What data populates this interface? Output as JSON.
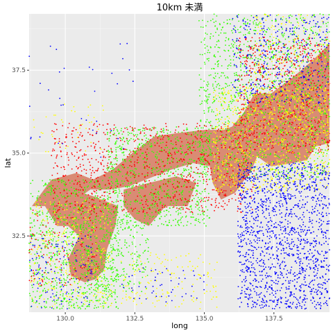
{
  "chart_data": {
    "type": "scatter",
    "title": "10km 未満",
    "xlabel": "long",
    "ylabel": "lat",
    "xlim": [
      128.7,
      139.5
    ],
    "ylim": [
      30.2,
      39.2
    ],
    "grid": true,
    "legend": "none",
    "x_ticks": [
      {
        "value": 130.0,
        "label": "130.0"
      },
      {
        "value": 132.5,
        "label": "132.5"
      },
      {
        "value": 135.0,
        "label": "135.0"
      },
      {
        "value": 137.5,
        "label": "137.5"
      }
    ],
    "y_ticks": [
      {
        "value": 32.5,
        "label": "32.5"
      },
      {
        "value": 35.0,
        "label": "35.0"
      },
      {
        "value": 37.5,
        "label": "37.5"
      }
    ],
    "colors": {
      "panel_background": "#ebebeb",
      "grid": "#ffffff",
      "land": "#d98b74",
      "blue": "#0000ff",
      "yellow": "#ffff00",
      "green": "#33ff00",
      "red": "#ff0000"
    },
    "land_polygons": [
      [
        [
          128.8,
          33.4
        ],
        [
          129.5,
          34.2
        ],
        [
          130.4,
          34.4
        ],
        [
          131.0,
          34.2
        ],
        [
          131.7,
          34.5
        ],
        [
          132.4,
          35.0
        ],
        [
          133.2,
          35.5
        ],
        [
          134.0,
          35.6
        ],
        [
          135.0,
          35.7
        ],
        [
          135.7,
          35.7
        ],
        [
          136.0,
          35.8
        ],
        [
          136.4,
          36.2
        ],
        [
          136.8,
          36.8
        ],
        [
          137.4,
          36.8
        ],
        [
          138.2,
          37.3
        ],
        [
          138.9,
          37.8
        ],
        [
          139.5,
          38.3
        ],
        [
          139.5,
          35.3
        ],
        [
          139.0,
          35.2
        ],
        [
          138.7,
          34.8
        ],
        [
          138.2,
          34.7
        ],
        [
          137.4,
          34.6
        ],
        [
          136.9,
          34.9
        ],
        [
          136.7,
          34.5
        ],
        [
          136.1,
          33.8
        ],
        [
          135.6,
          33.6
        ],
        [
          135.3,
          34.1
        ],
        [
          135.2,
          34.6
        ],
        [
          134.6,
          34.7
        ],
        [
          133.8,
          34.5
        ],
        [
          132.9,
          34.2
        ],
        [
          132.3,
          34.0
        ],
        [
          131.6,
          33.9
        ],
        [
          130.9,
          33.9
        ],
        [
          130.4,
          33.6
        ],
        [
          129.8,
          33.4
        ]
      ],
      [
        [
          129.2,
          33.5
        ],
        [
          130.2,
          33.9
        ],
        [
          131.0,
          33.7
        ],
        [
          131.9,
          33.4
        ],
        [
          131.8,
          32.8
        ],
        [
          131.5,
          32.1
        ],
        [
          131.4,
          31.5
        ],
        [
          131.1,
          31.2
        ],
        [
          130.7,
          31.1
        ],
        [
          130.2,
          31.3
        ],
        [
          130.1,
          31.8
        ],
        [
          130.5,
          32.5
        ],
        [
          130.1,
          32.8
        ],
        [
          129.7,
          32.8
        ]
      ],
      [
        [
          132.1,
          33.9
        ],
        [
          133.0,
          34.1
        ],
        [
          134.0,
          34.3
        ],
        [
          134.7,
          34.1
        ],
        [
          134.4,
          33.4
        ],
        [
          133.6,
          33.4
        ],
        [
          133.0,
          32.8
        ],
        [
          132.5,
          33.0
        ],
        [
          132.1,
          33.4
        ]
      ]
    ],
    "cluster_seed": 12345,
    "clusters": [
      {
        "series": "green",
        "x": [
          128.7,
          131.9
        ],
        "y": [
          30.3,
          34.2
        ],
        "n": 900
      },
      {
        "series": "green",
        "x": [
          131.5,
          135.2
        ],
        "y": [
          32.8,
          35.8
        ],
        "n": 800
      },
      {
        "series": "green",
        "x": [
          134.8,
          139.5
        ],
        "y": [
          34.2,
          39.2
        ],
        "n": 1300
      },
      {
        "series": "green",
        "x": [
          130.8,
          133.0
        ],
        "y": [
          30.8,
          33.0
        ],
        "n": 260
      },
      {
        "series": "red",
        "x": [
          129.5,
          136.8
        ],
        "y": [
          33.2,
          35.9
        ],
        "n": 900
      },
      {
        "series": "red",
        "x": [
          136.2,
          139.5
        ],
        "y": [
          35.0,
          38.5
        ],
        "n": 700
      },
      {
        "series": "red",
        "x": [
          128.7,
          131.2
        ],
        "y": [
          31.0,
          33.4
        ],
        "n": 150
      },
      {
        "series": "yellow",
        "x": [
          128.7,
          131.7
        ],
        "y": [
          30.3,
          33.6
        ],
        "n": 320
      },
      {
        "series": "yellow",
        "x": [
          135.3,
          139.5
        ],
        "y": [
          33.8,
          37.0
        ],
        "n": 900
      },
      {
        "series": "yellow",
        "x": [
          132.0,
          135.5
        ],
        "y": [
          30.3,
          32.0
        ],
        "n": 150
      },
      {
        "series": "yellow",
        "x": [
          136.8,
          139.5
        ],
        "y": [
          36.0,
          39.2
        ],
        "n": 250
      },
      {
        "series": "yellow",
        "x": [
          128.7,
          131.5
        ],
        "y": [
          35.0,
          36.5
        ],
        "n": 40
      },
      {
        "series": "blue",
        "x": [
          136.2,
          139.5
        ],
        "y": [
          30.3,
          34.7
        ],
        "n": 1500
      },
      {
        "series": "blue",
        "x": [
          136.0,
          139.5
        ],
        "y": [
          36.5,
          39.2
        ],
        "n": 350
      },
      {
        "series": "blue",
        "x": [
          128.7,
          131.0
        ],
        "y": [
          30.3,
          32.5
        ],
        "n": 120
      },
      {
        "series": "blue",
        "x": [
          128.7,
          132.5
        ],
        "y": [
          34.8,
          38.5
        ],
        "n": 35
      },
      {
        "series": "blue",
        "x": [
          132.0,
          135.0
        ],
        "y": [
          30.5,
          31.6
        ],
        "n": 50
      }
    ]
  }
}
